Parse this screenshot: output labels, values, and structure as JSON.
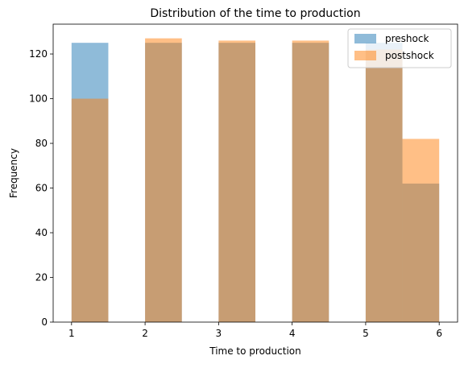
{
  "chart_data": {
    "type": "bar",
    "title": "Distribution of the time to production",
    "xlabel": "Time to production",
    "ylabel": "Frequency",
    "xlim": [
      0.75,
      6.25
    ],
    "ylim": [
      0,
      133.35
    ],
    "xticks": [
      1,
      2,
      3,
      4,
      5,
      6
    ],
    "yticks": [
      0,
      20,
      40,
      60,
      80,
      100,
      120
    ],
    "bins": [
      [
        1.0,
        1.5
      ],
      [
        1.5,
        2.0
      ],
      [
        2.0,
        2.5
      ],
      [
        2.5,
        3.0
      ],
      [
        3.0,
        3.5
      ],
      [
        3.5,
        4.0
      ],
      [
        4.0,
        4.5
      ],
      [
        4.5,
        5.0
      ],
      [
        5.0,
        5.5
      ],
      [
        5.5,
        6.0
      ]
    ],
    "series": [
      {
        "name": "preshock",
        "color": "#1f77b4",
        "opacity": 0.5,
        "values": [
          125,
          0,
          125,
          0,
          125,
          0,
          125,
          0,
          125,
          62
        ]
      },
      {
        "name": "postshock",
        "color": "#ff7f0e",
        "opacity": 0.5,
        "values": [
          100,
          0,
          127,
          0,
          126,
          0,
          126,
          0,
          122,
          82
        ]
      }
    ],
    "legend_position": "top-right",
    "grid": false
  }
}
